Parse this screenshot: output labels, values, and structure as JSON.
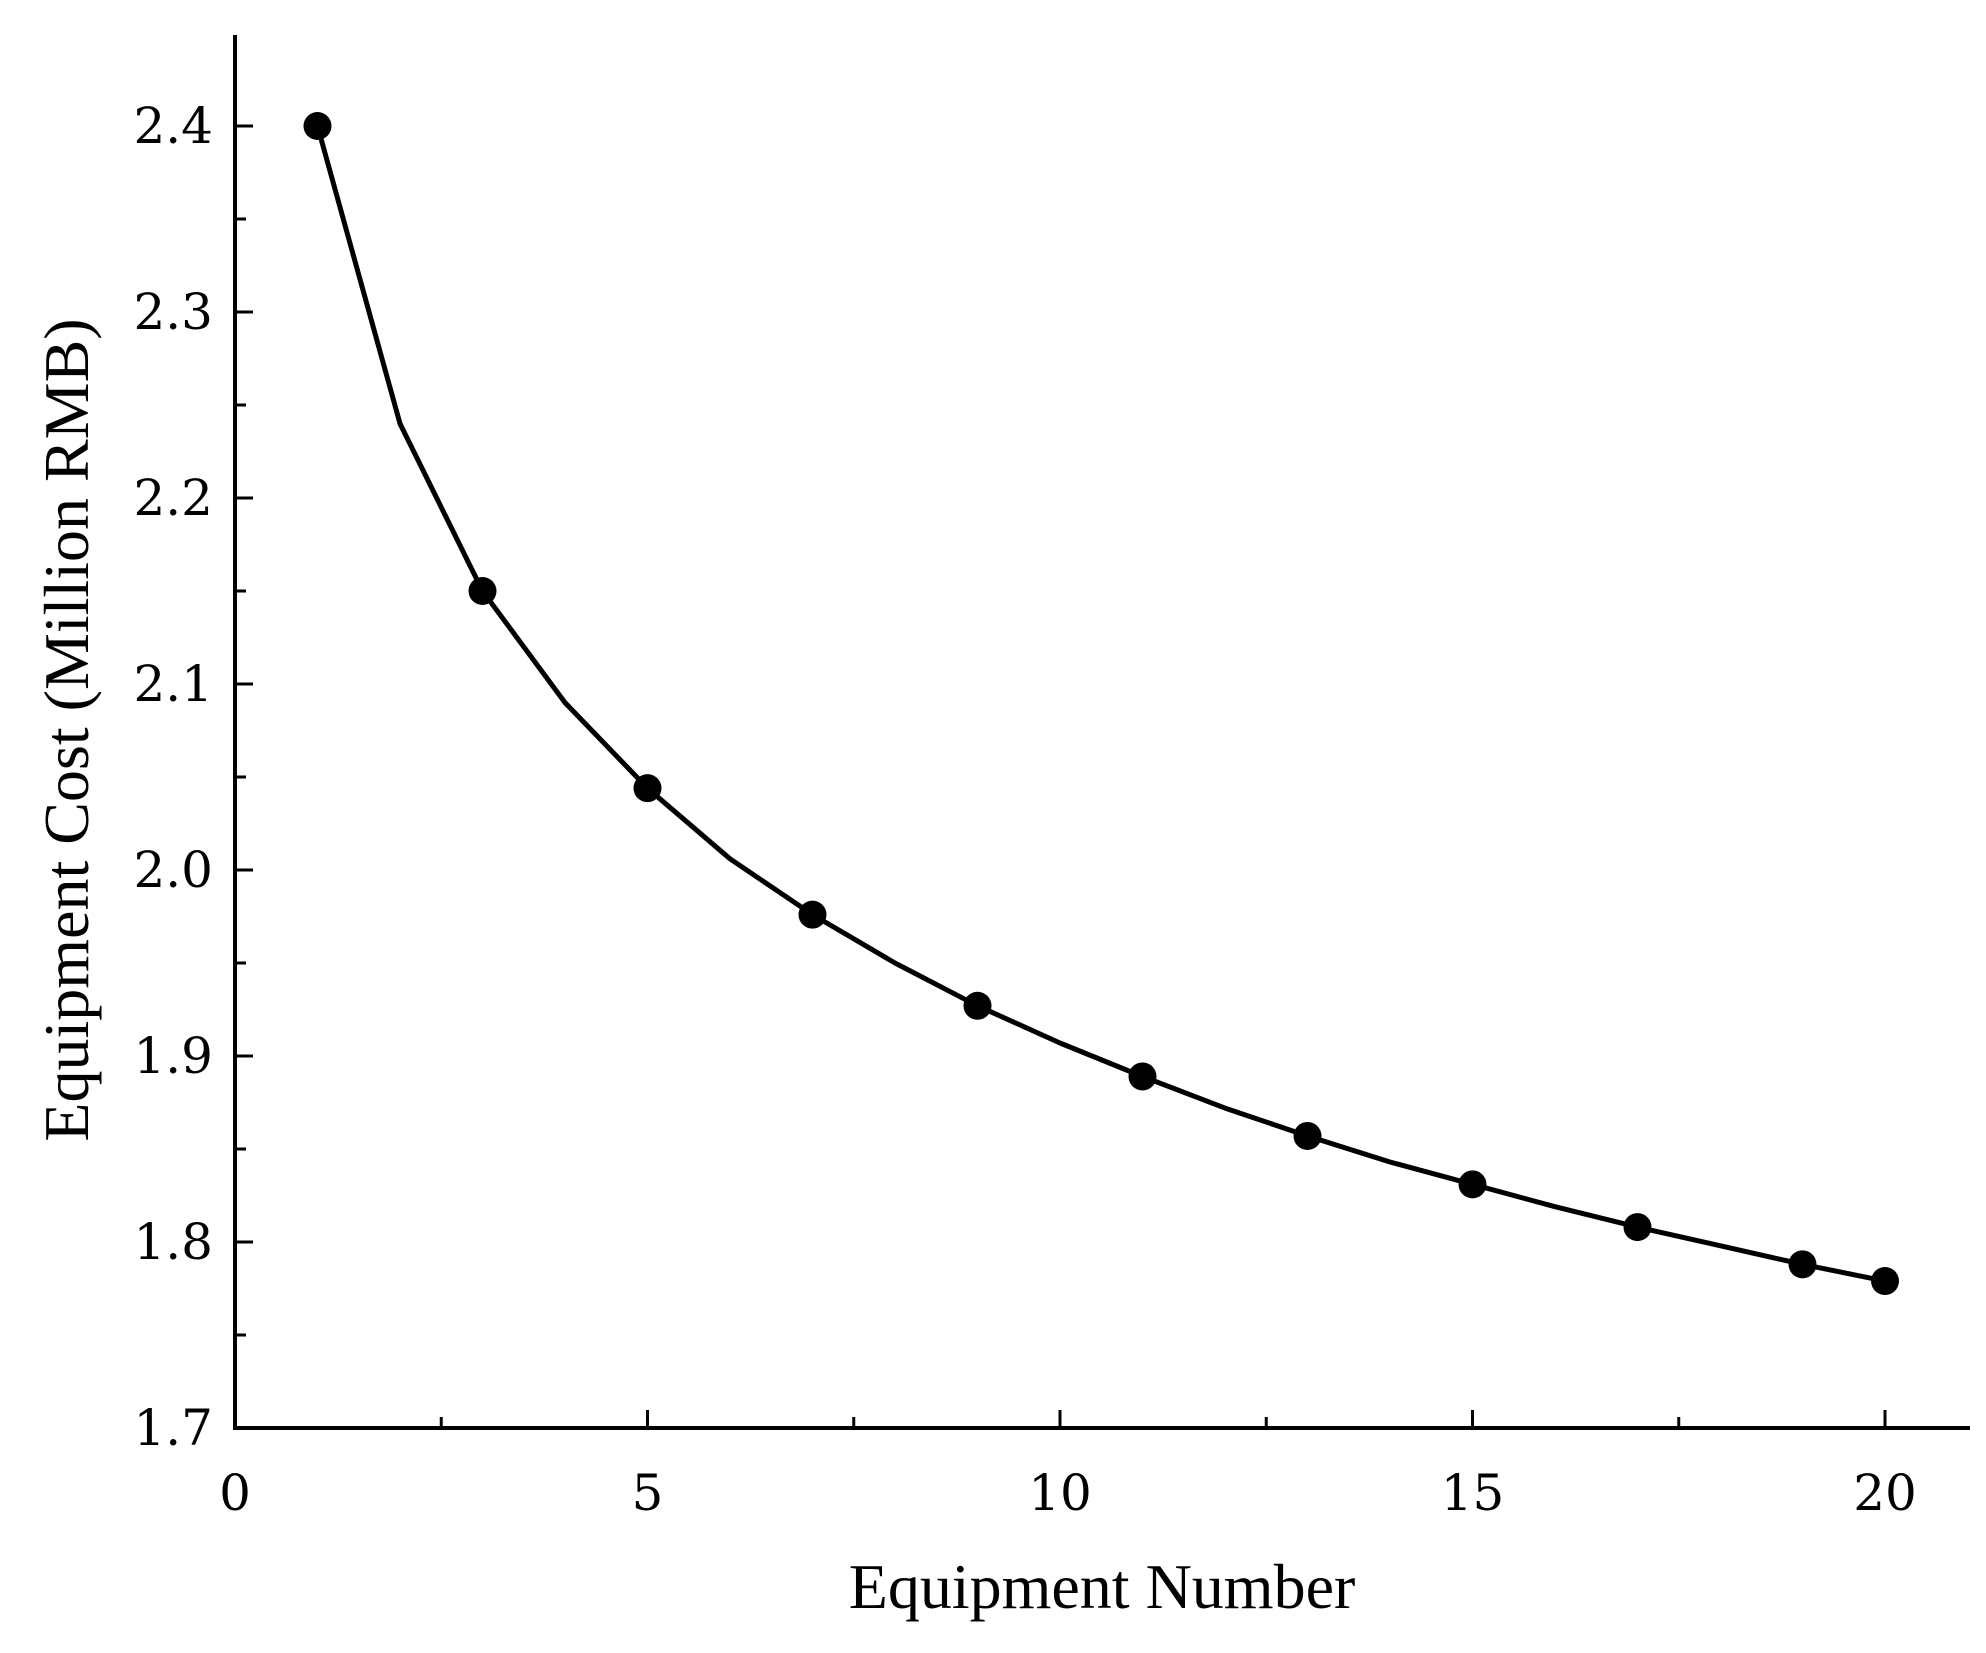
{
  "chart_data": {
    "type": "line",
    "title": "",
    "xlabel": "Equipment Number",
    "ylabel": "Equipment  Cost (Million RMB)",
    "xlim": [
      0,
      21
    ],
    "ylim": [
      1.7,
      2.45
    ],
    "x_ticks": [
      "0",
      "5",
      "10",
      "15",
      "20"
    ],
    "y_ticks": [
      "1.7",
      "1.8",
      "1.9",
      "2.0",
      "2.1",
      "2.2",
      "2.3",
      "2.4"
    ],
    "grid": false,
    "legend": "none",
    "series": [
      {
        "line_x": [
          1,
          2,
          3,
          4,
          5,
          6,
          7,
          8,
          9,
          10,
          11,
          12,
          13,
          14,
          15,
          16,
          17,
          18,
          19,
          20
        ],
        "line_y": [
          2.4,
          2.24,
          2.15,
          2.09,
          2.044,
          2.006,
          1.976,
          1.95,
          1.927,
          1.907,
          1.889,
          1.872,
          1.857,
          1.843,
          1.831,
          1.819,
          1.808,
          1.798,
          1.788,
          1.779
        ],
        "marker_x": [
          1,
          3,
          5,
          7,
          9,
          11,
          13,
          15,
          17,
          19,
          20
        ],
        "marker_y": [
          2.4,
          2.15,
          2.044,
          1.976,
          1.927,
          1.889,
          1.857,
          1.831,
          1.808,
          1.788,
          1.779
        ],
        "color": "#000000",
        "marker": "filled-circle"
      }
    ]
  }
}
